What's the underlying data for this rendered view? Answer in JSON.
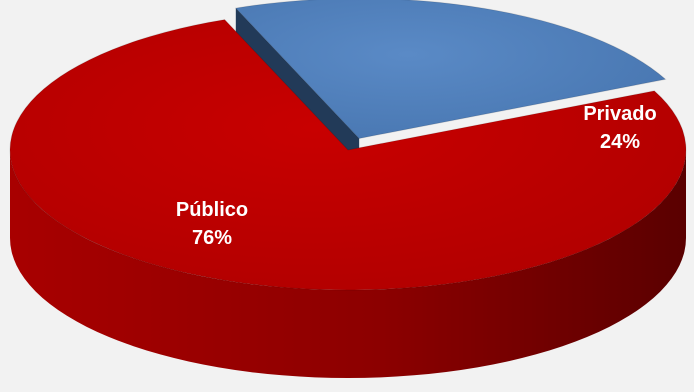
{
  "chart_data": {
    "type": "pie",
    "style": "3d-exploded",
    "categories": [
      "Público",
      "Privado"
    ],
    "values": [
      76,
      24
    ],
    "value_labels": [
      "76%",
      "24%"
    ],
    "colors": [
      "#c00000",
      "#4f81bd"
    ],
    "title": "",
    "legend": "none"
  }
}
